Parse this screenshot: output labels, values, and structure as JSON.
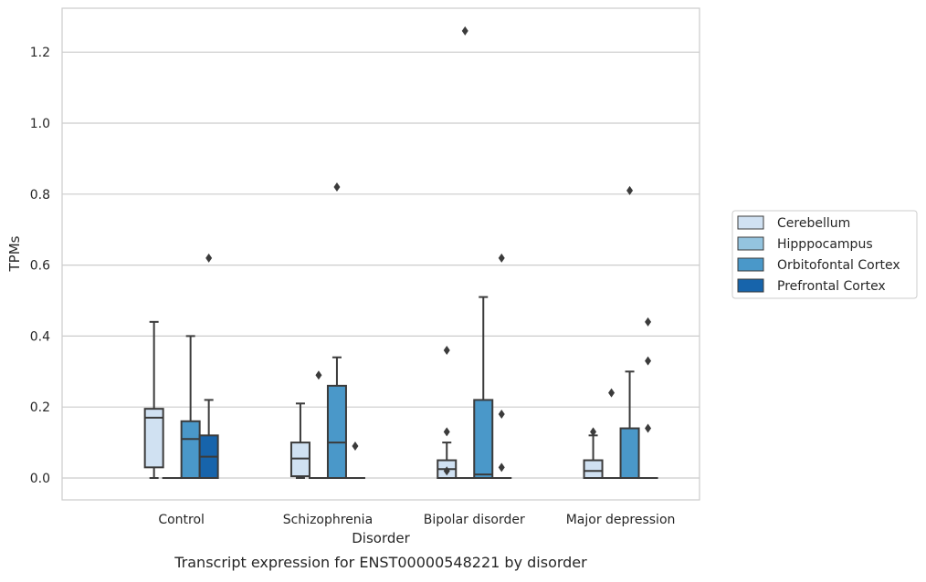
{
  "chart_data": {
    "type": "box",
    "title": "",
    "caption": "Transcript expression for ENST00000548221 by disorder",
    "xlabel": "Disorder",
    "ylabel": "TPMs",
    "categories": [
      "Control",
      "Schizophrenia",
      "Bipolar disorder",
      "Major depression"
    ],
    "ylim": [
      -0.06,
      1.32
    ],
    "yticks": [
      0.0,
      0.2,
      0.4,
      0.6,
      0.8,
      1.0,
      1.2
    ],
    "ytick_labels": [
      "0.0",
      "0.2",
      "0.4",
      "0.6",
      "0.8",
      "1.0",
      "1.2"
    ],
    "grid": "horizontal",
    "legend_position": "right",
    "series": [
      {
        "name": "Cerebellum",
        "color": "#d0e1f2",
        "boxes": [
          {
            "whislo": 0.0,
            "q1": 0.03,
            "med": 0.17,
            "q3": 0.195,
            "whishi": 0.44,
            "fliers": []
          },
          {
            "whislo": 0.0,
            "q1": 0.005,
            "med": 0.055,
            "q3": 0.1,
            "whishi": 0.21,
            "fliers": []
          },
          {
            "whislo": 0.0,
            "q1": 0.0,
            "med": 0.025,
            "q3": 0.05,
            "whishi": 0.1,
            "fliers": [
              0.36,
              0.13,
              0.02
            ]
          },
          {
            "whislo": 0.0,
            "q1": 0.0,
            "med": 0.02,
            "q3": 0.05,
            "whishi": 0.12,
            "fliers": [
              0.13
            ]
          }
        ]
      },
      {
        "name": "Hipppocampus",
        "color": "#94c4df",
        "boxes": [
          {
            "whislo": 0.0,
            "q1": 0.0,
            "med": 0.0,
            "q3": 0.0,
            "whishi": 0.0,
            "fliers": []
          },
          {
            "whislo": 0.0,
            "q1": 0.0,
            "med": 0.0,
            "q3": 0.0,
            "whishi": 0.0,
            "fliers": [
              0.29
            ]
          },
          {
            "whislo": 0.0,
            "q1": 0.0,
            "med": 0.0,
            "q3": 0.0,
            "whishi": 0.0,
            "fliers": [
              1.26
            ]
          },
          {
            "whislo": 0.0,
            "q1": 0.0,
            "med": 0.0,
            "q3": 0.0,
            "whishi": 0.0,
            "fliers": [
              0.24
            ]
          }
        ]
      },
      {
        "name": "Orbitofontal Cortex",
        "color": "#4a98c9",
        "boxes": [
          {
            "whislo": 0.0,
            "q1": 0.0,
            "med": 0.11,
            "q3": 0.16,
            "whishi": 0.4,
            "fliers": []
          },
          {
            "whislo": 0.0,
            "q1": 0.0,
            "med": 0.1,
            "q3": 0.26,
            "whishi": 0.34,
            "fliers": [
              0.82
            ]
          },
          {
            "whislo": 0.0,
            "q1": 0.0,
            "med": 0.01,
            "q3": 0.22,
            "whishi": 0.51,
            "fliers": []
          },
          {
            "whislo": 0.0,
            "q1": 0.0,
            "med": 0.0,
            "q3": 0.14,
            "whishi": 0.3,
            "fliers": [
              0.81
            ]
          }
        ]
      },
      {
        "name": "Prefrontal Cortex",
        "color": "#1764ab",
        "boxes": [
          {
            "whislo": 0.0,
            "q1": 0.0,
            "med": 0.06,
            "q3": 0.12,
            "whishi": 0.22,
            "fliers": [
              0.62
            ]
          },
          {
            "whislo": 0.0,
            "q1": 0.0,
            "med": 0.0,
            "q3": 0.0,
            "whishi": 0.0,
            "fliers": [
              0.09
            ]
          },
          {
            "whislo": 0.0,
            "q1": 0.0,
            "med": 0.0,
            "q3": 0.0,
            "whishi": 0.0,
            "fliers": [
              0.62,
              0.18,
              0.03
            ]
          },
          {
            "whislo": 0.0,
            "q1": 0.0,
            "med": 0.0,
            "q3": 0.0,
            "whishi": 0.0,
            "fliers": [
              0.44,
              0.33,
              0.14
            ]
          }
        ]
      }
    ]
  }
}
